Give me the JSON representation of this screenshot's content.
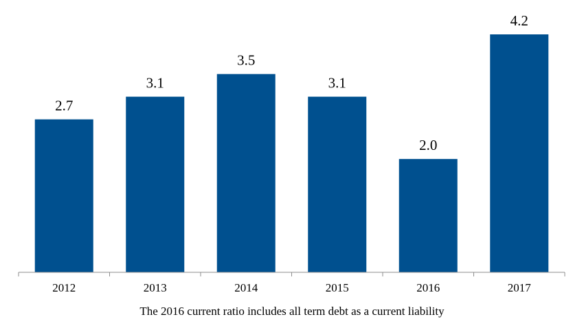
{
  "chart_data": {
    "type": "bar",
    "categories": [
      "2012",
      "2013",
      "2014",
      "2015",
      "2016",
      "2017"
    ],
    "values": [
      2.7,
      3.1,
      3.5,
      3.1,
      2.0,
      4.2
    ],
    "value_labels": [
      "2.7",
      "3.1",
      "3.5",
      "3.1",
      "2.0",
      "4.2"
    ],
    "title": "",
    "xlabel": "",
    "ylabel": "",
    "ylim": [
      0,
      4.2
    ],
    "grid": false,
    "legend": "none",
    "bar_color": "#00508F",
    "note": "The 2016 current ratio includes all term debt as a current liability"
  }
}
